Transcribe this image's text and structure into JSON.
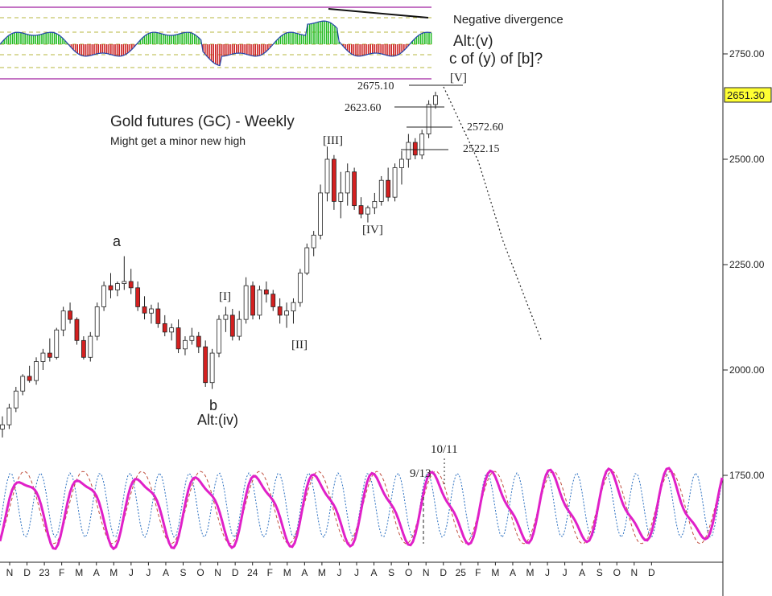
{
  "chart_data": {
    "type": "candlestick",
    "title": "Gold futures (GC) - Weekly",
    "subtitle": "Might get a minor new high",
    "y_axis": {
      "ticks": [
        1750,
        2000,
        2250,
        2500,
        2750
      ],
      "tick_labels": [
        "1750.00",
        "2000.00",
        "2250.00",
        "2500.00",
        "2750.00"
      ],
      "range": [
        1540,
        2880
      ],
      "position": "right"
    },
    "x_axis": {
      "tick_labels": [
        "N",
        "D",
        "23",
        "F",
        "M",
        "A",
        "M",
        "J",
        "J",
        "A",
        "S",
        "O",
        "N",
        "D",
        "24",
        "F",
        "M",
        "A",
        "M",
        "J",
        "J",
        "A",
        "S",
        "O",
        "N",
        "D",
        "25",
        "F",
        "M",
        "A",
        "M",
        "J",
        "J",
        "A",
        "S",
        "O",
        "N",
        "D"
      ]
    },
    "last_price": 2651.3,
    "last_price_label": "2651.30",
    "price_series": [
      {
        "o": 1860,
        "h": 1890,
        "l": 1840,
        "c": 1870
      },
      {
        "o": 1870,
        "h": 1920,
        "l": 1860,
        "c": 1910
      },
      {
        "o": 1910,
        "h": 1960,
        "l": 1900,
        "c": 1950
      },
      {
        "o": 1950,
        "h": 1990,
        "l": 1940,
        "c": 1985
      },
      {
        "o": 1985,
        "h": 2010,
        "l": 1970,
        "c": 1975
      },
      {
        "o": 1975,
        "h": 2030,
        "l": 1965,
        "c": 2020
      },
      {
        "o": 2020,
        "h": 2050,
        "l": 2000,
        "c": 2040
      },
      {
        "o": 2040,
        "h": 2075,
        "l": 2020,
        "c": 2030
      },
      {
        "o": 2030,
        "h": 2100,
        "l": 2025,
        "c": 2095
      },
      {
        "o": 2095,
        "h": 2150,
        "l": 2080,
        "c": 2140
      },
      {
        "o": 2140,
        "h": 2160,
        "l": 2110,
        "c": 2120
      },
      {
        "o": 2120,
        "h": 2125,
        "l": 2060,
        "c": 2070
      },
      {
        "o": 2070,
        "h": 2080,
        "l": 2025,
        "c": 2030
      },
      {
        "o": 2030,
        "h": 2090,
        "l": 2020,
        "c": 2080
      },
      {
        "o": 2080,
        "h": 2160,
        "l": 2070,
        "c": 2150
      },
      {
        "o": 2150,
        "h": 2210,
        "l": 2140,
        "c": 2200
      },
      {
        "o": 2200,
        "h": 2230,
        "l": 2170,
        "c": 2190
      },
      {
        "o": 2190,
        "h": 2210,
        "l": 2175,
        "c": 2205
      },
      {
        "o": 2205,
        "h": 2270,
        "l": 2190,
        "c": 2210
      },
      {
        "o": 2210,
        "h": 2240,
        "l": 2180,
        "c": 2195
      },
      {
        "o": 2195,
        "h": 2210,
        "l": 2140,
        "c": 2150
      },
      {
        "o": 2150,
        "h": 2175,
        "l": 2120,
        "c": 2135
      },
      {
        "o": 2135,
        "h": 2155,
        "l": 2110,
        "c": 2145
      },
      {
        "o": 2145,
        "h": 2160,
        "l": 2100,
        "c": 2110
      },
      {
        "o": 2110,
        "h": 2130,
        "l": 2080,
        "c": 2090
      },
      {
        "o": 2090,
        "h": 2110,
        "l": 2070,
        "c": 2100
      },
      {
        "o": 2100,
        "h": 2120,
        "l": 2040,
        "c": 2050
      },
      {
        "o": 2050,
        "h": 2080,
        "l": 2035,
        "c": 2070
      },
      {
        "o": 2070,
        "h": 2100,
        "l": 2060,
        "c": 2080
      },
      {
        "o": 2080,
        "h": 2090,
        "l": 2040,
        "c": 2055
      },
      {
        "o": 2055,
        "h": 2070,
        "l": 1960,
        "c": 1970
      },
      {
        "o": 1970,
        "h": 2050,
        "l": 1955,
        "c": 2040
      },
      {
        "o": 2040,
        "h": 2130,
        "l": 2030,
        "c": 2120
      },
      {
        "o": 2120,
        "h": 2150,
        "l": 2090,
        "c": 2130
      },
      {
        "o": 2130,
        "h": 2145,
        "l": 2070,
        "c": 2080
      },
      {
        "o": 2080,
        "h": 2140,
        "l": 2070,
        "c": 2120
      },
      {
        "o": 2120,
        "h": 2220,
        "l": 2110,
        "c": 2200
      },
      {
        "o": 2200,
        "h": 2210,
        "l": 2120,
        "c": 2130
      },
      {
        "o": 2130,
        "h": 2200,
        "l": 2120,
        "c": 2190
      },
      {
        "o": 2190,
        "h": 2210,
        "l": 2160,
        "c": 2180
      },
      {
        "o": 2180,
        "h": 2190,
        "l": 2140,
        "c": 2150
      },
      {
        "o": 2150,
        "h": 2170,
        "l": 2110,
        "c": 2130
      },
      {
        "o": 2130,
        "h": 2160,
        "l": 2100,
        "c": 2140
      },
      {
        "o": 2140,
        "h": 2170,
        "l": 2110,
        "c": 2160
      },
      {
        "o": 2160,
        "h": 2240,
        "l": 2150,
        "c": 2230
      },
      {
        "o": 2230,
        "h": 2300,
        "l": 2225,
        "c": 2290
      },
      {
        "o": 2290,
        "h": 2330,
        "l": 2270,
        "c": 2320
      },
      {
        "o": 2320,
        "h": 2440,
        "l": 2310,
        "c": 2420
      },
      {
        "o": 2420,
        "h": 2530,
        "l": 2400,
        "c": 2500
      },
      {
        "o": 2500,
        "h": 2510,
        "l": 2380,
        "c": 2400
      },
      {
        "o": 2400,
        "h": 2470,
        "l": 2360,
        "c": 2420
      },
      {
        "o": 2420,
        "h": 2490,
        "l": 2390,
        "c": 2470
      },
      {
        "o": 2470,
        "h": 2480,
        "l": 2380,
        "c": 2390
      },
      {
        "o": 2390,
        "h": 2410,
        "l": 2360,
        "c": 2370
      },
      {
        "o": 2370,
        "h": 2390,
        "l": 2350,
        "c": 2385
      },
      {
        "o": 2385,
        "h": 2420,
        "l": 2370,
        "c": 2400
      },
      {
        "o": 2400,
        "h": 2460,
        "l": 2390,
        "c": 2450
      },
      {
        "o": 2450,
        "h": 2480,
        "l": 2400,
        "c": 2410
      },
      {
        "o": 2410,
        "h": 2490,
        "l": 2400,
        "c": 2480
      },
      {
        "o": 2480,
        "h": 2520,
        "l": 2440,
        "c": 2500
      },
      {
        "o": 2500,
        "h": 2560,
        "l": 2480,
        "c": 2540
      },
      {
        "o": 2540,
        "h": 2550,
        "l": 2500,
        "c": 2510
      },
      {
        "o": 2510,
        "h": 2570,
        "l": 2500,
        "c": 2560
      },
      {
        "o": 2560,
        "h": 2640,
        "l": 2550,
        "c": 2630
      },
      {
        "o": 2630,
        "h": 2660,
        "l": 2620,
        "c": 2651
      }
    ],
    "annotations": [
      {
        "text": "a",
        "label_style": "wave"
      },
      {
        "text": "b",
        "label_style": "wave"
      },
      {
        "text": "Alt:(iv)",
        "label_style": "wave"
      },
      {
        "text": "[I]",
        "label_style": "wave"
      },
      {
        "text": "[II]",
        "label_style": "wave"
      },
      {
        "text": "[III]",
        "label_style": "wave"
      },
      {
        "text": "[IV]",
        "label_style": "wave"
      },
      {
        "text": "[V]",
        "label_style": "wave"
      },
      {
        "text": "Alt:(v)",
        "label_style": "wave"
      },
      {
        "text": "c of (y) of [b]?",
        "label_style": "wave"
      },
      {
        "text": "Negative divergence",
        "label_style": "note"
      }
    ],
    "price_levels": [
      {
        "value": 2675.1,
        "label": "2675.10"
      },
      {
        "value": 2623.6,
        "label": "2623.60"
      },
      {
        "value": 2572.6,
        "label": "2572.60"
      },
      {
        "value": 2522.15,
        "label": "2522.15"
      }
    ],
    "cycle_dates": [
      {
        "label": "9/13"
      },
      {
        "label": "10/11"
      }
    ],
    "projection": {
      "style": "dotted",
      "from": 2675,
      "to": 2070
    },
    "oscillator": {
      "type": "histogram",
      "position": "top"
    },
    "cycles": {
      "series": [
        {
          "color": "#e020c8",
          "style": "solid"
        },
        {
          "color": "#c05040",
          "style": "dashed"
        },
        {
          "color": "#2a6fc0",
          "style": "dotted"
        }
      ]
    }
  },
  "colors": {
    "bull": "#ffffff",
    "bear": "#d42020",
    "wick": "#222222",
    "osc_up": "#22bb22",
    "osc_down": "#cc2222"
  }
}
